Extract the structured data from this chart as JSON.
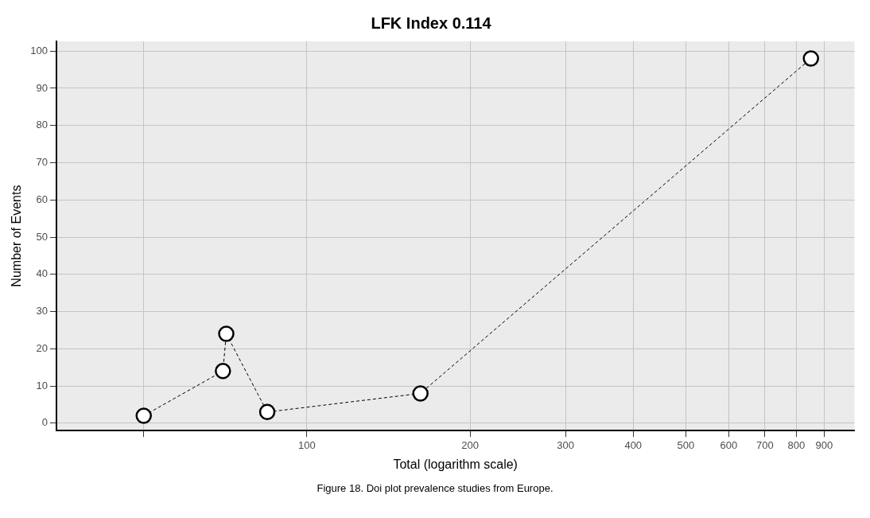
{
  "chart_data": {
    "type": "line",
    "title": "LFK Index 0.114",
    "xlabel": "Total (logarithm scale)",
    "ylabel": "Number of Events",
    "log": "x",
    "series": [
      {
        "color": "#000000",
        "x": [
          50,
          70,
          71,
          84.5,
          162,
          851
        ],
        "values": [
          2,
          14,
          24,
          3,
          8,
          98
        ]
      }
    ],
    "xlim": [
      34.5,
      1024
    ],
    "xticks": [
      {
        "value": 50,
        "label": null
      },
      100,
      200,
      300,
      400,
      500,
      600,
      700,
      800,
      900
    ],
    "ylim": [
      -2,
      102.6
    ],
    "yticks": [
      0,
      10,
      20,
      30,
      40,
      50,
      60,
      70,
      80,
      90,
      100
    ],
    "grid": true,
    "marker": "circle",
    "line_style": "dashed",
    "legend": false,
    "annotations": [
      "Figure 18. Doi plot prevalence studies from Europe."
    ]
  }
}
